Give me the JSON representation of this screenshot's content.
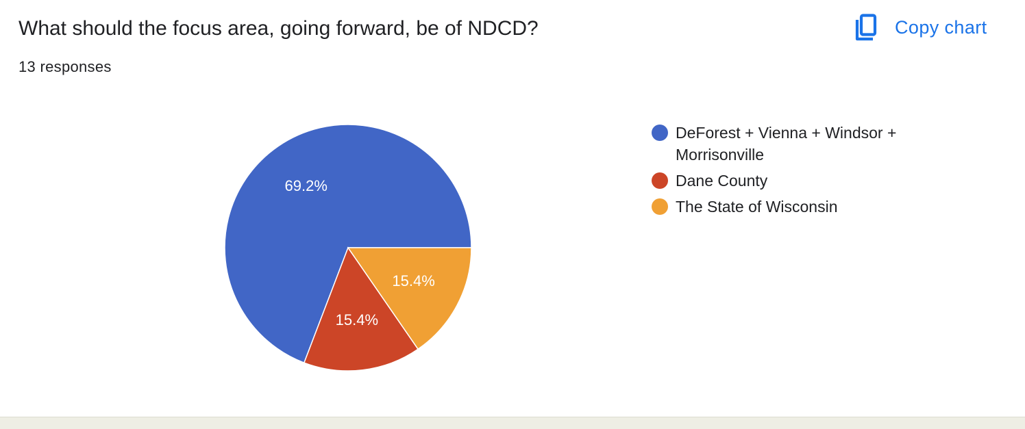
{
  "question": {
    "title": "What should the focus area, going forward, be of NDCD?",
    "responses_text": "13 responses"
  },
  "copy_chart": {
    "label": "Copy chart",
    "icon": "copy-icon",
    "color": "#1a73e8"
  },
  "chart_data": {
    "type": "pie",
    "total_responses": 13,
    "labels": [
      "DeForest + Vienna + Windsor + Morrisonville",
      "Dane County",
      "The State of Wisconsin"
    ],
    "values": [
      69.2,
      15.4,
      15.4
    ],
    "counts": [
      9,
      2,
      2
    ],
    "slice_labels": [
      "69.2%",
      "15.4%",
      "15.4%"
    ],
    "colors": [
      "#4166c6",
      "#cc4527",
      "#f0a034"
    ],
    "legend_position": "right"
  }
}
